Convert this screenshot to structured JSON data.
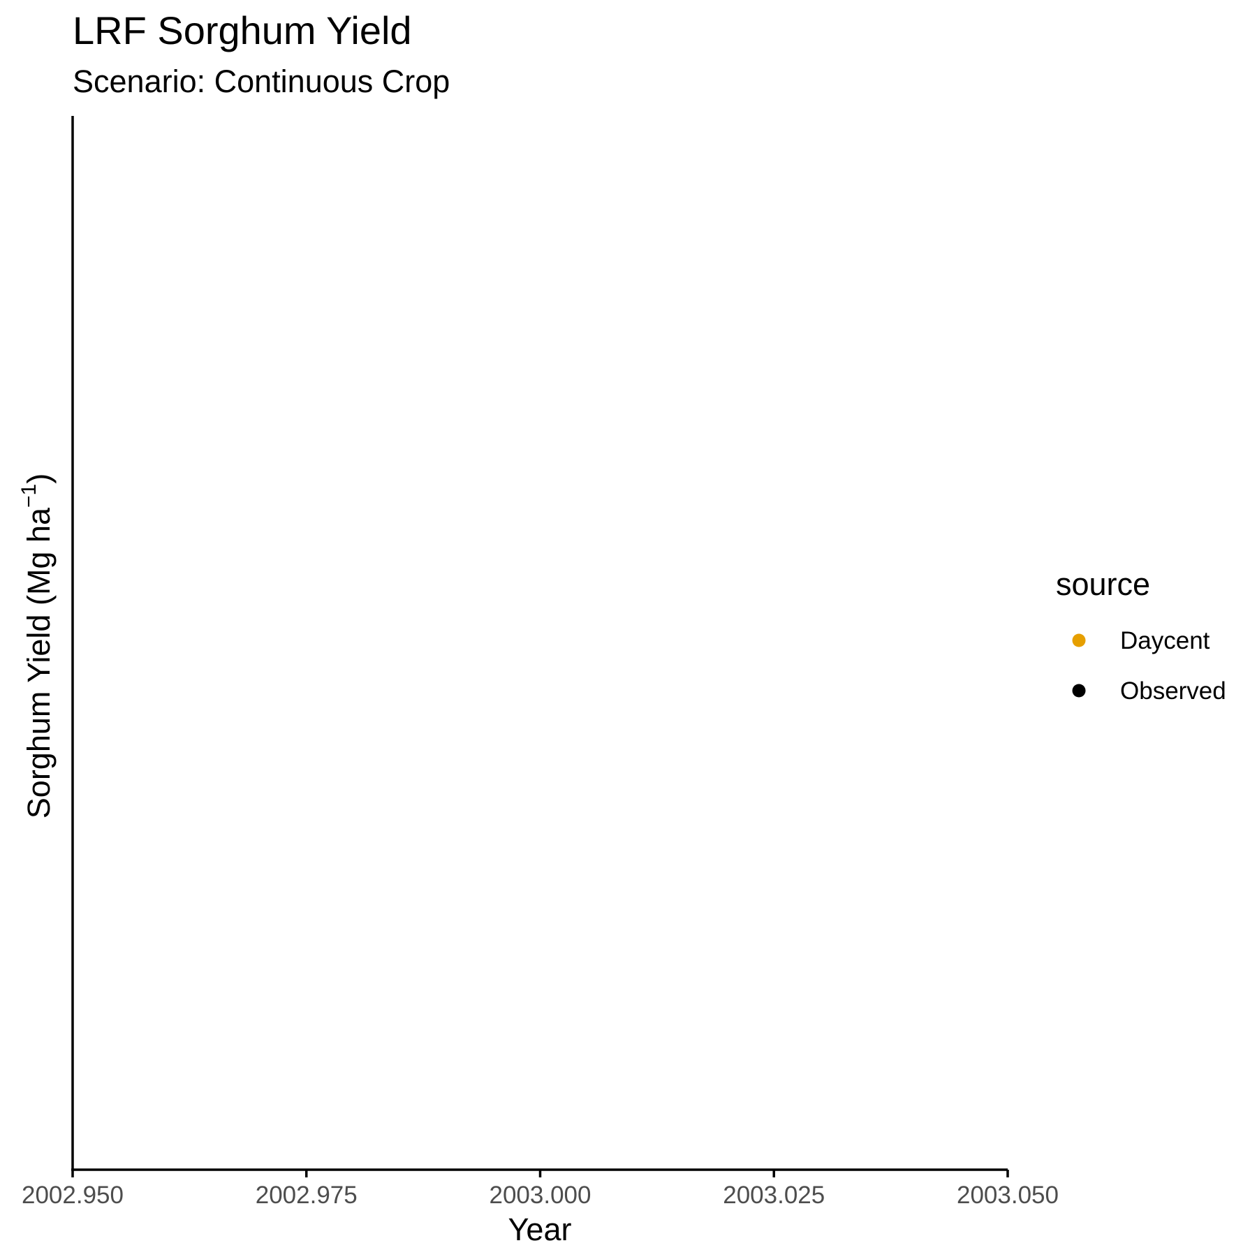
{
  "chart_data": {
    "type": "scatter",
    "title": "LRF Sorghum Yield",
    "subtitle": "Scenario: Continuous Crop",
    "xlabel": "Year",
    "ylabel_main": "Sorghum Yield (Mg ha",
    "ylabel_sup": "−1",
    "ylabel_end": ")",
    "xlim": [
      2002.95,
      2003.05
    ],
    "x_ticks": [
      2002.95,
      2002.975,
      2003.0,
      2003.025,
      2003.05
    ],
    "x_tick_labels": [
      "2002.950",
      "2002.975",
      "2003.000",
      "2003.025",
      "2003.050"
    ],
    "grid": false,
    "legend": {
      "title": "source",
      "placement": "right",
      "entries": [
        {
          "label": "Daycent",
          "color": "#E69F00"
        },
        {
          "label": "Observed",
          "color": "#000000"
        }
      ]
    },
    "series": [
      {
        "name": "Daycent",
        "color": "#E69F00",
        "points": []
      },
      {
        "name": "Observed",
        "color": "#000000",
        "points": []
      }
    ]
  }
}
